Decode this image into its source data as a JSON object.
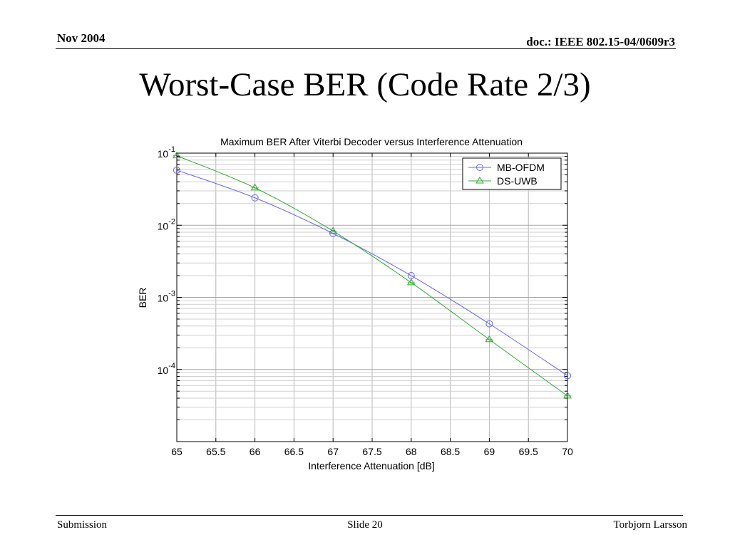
{
  "header": {
    "date": "Nov 2004",
    "doc": "doc.: IEEE 802.15-04/0609r3"
  },
  "slide": {
    "title": "Worst-Case BER (Code Rate 2/3)"
  },
  "footer": {
    "left": "Submission",
    "center": "Slide 20",
    "right": "Torbjorn Larsson"
  },
  "chart_data": {
    "type": "line",
    "title": "Maximum BER After Viterbi Decoder versus Interference Attenuation",
    "xlabel": "Interference Attenuation [dB]",
    "ylabel": "BER",
    "xlim": [
      65,
      70
    ],
    "ylim": [
      1e-05,
      0.1
    ],
    "yscale": "log",
    "grid": true,
    "legend": "top-right",
    "x_ticks": [
      "65",
      "65.5",
      "66",
      "66.5",
      "67",
      "67.5",
      "68",
      "68.5",
      "69",
      "69.5",
      "70"
    ],
    "y_ticks": [
      {
        "base": "10",
        "exp": "-1"
      },
      {
        "base": "10",
        "exp": "-2"
      },
      {
        "base": "10",
        "exp": "-3"
      },
      {
        "base": "10",
        "exp": "-4"
      }
    ],
    "x": [
      65,
      66,
      67,
      68,
      69,
      70
    ],
    "series": [
      {
        "name": "MB-OFDM",
        "color": "#6666ee",
        "marker": "circle",
        "values": [
          0.058,
          0.024,
          0.0077,
          0.002,
          0.00043,
          8.2e-05
        ]
      },
      {
        "name": "DS-UWB",
        "color": "#33aa33",
        "marker": "triangle",
        "values": [
          0.092,
          0.033,
          0.0083,
          0.0016,
          0.00026,
          4.3e-05
        ]
      }
    ]
  }
}
